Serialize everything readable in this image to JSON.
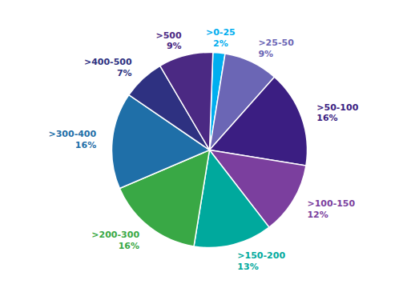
{
  "chart_data": {
    "type": "pie",
    "categories": [
      ">0-25",
      ">25-50",
      ">50-100",
      ">100-150",
      ">150-200",
      ">200-300",
      ">300-400",
      ">400-500",
      ">500"
    ],
    "values": [
      2,
      9,
      16,
      12,
      13,
      16,
      16,
      7,
      9
    ],
    "value_labels": [
      "2%",
      "9%",
      "16%",
      "12%",
      "13%",
      "16%",
      "16%",
      "7%",
      "9%"
    ],
    "colors": [
      "#00aeef",
      "#6b66b5",
      "#3b1e82",
      "#7b3f9e",
      "#00a99d",
      "#39a845",
      "#1f6fa8",
      "#2e3181",
      "#4b2983"
    ],
    "data_labels": true
  }
}
